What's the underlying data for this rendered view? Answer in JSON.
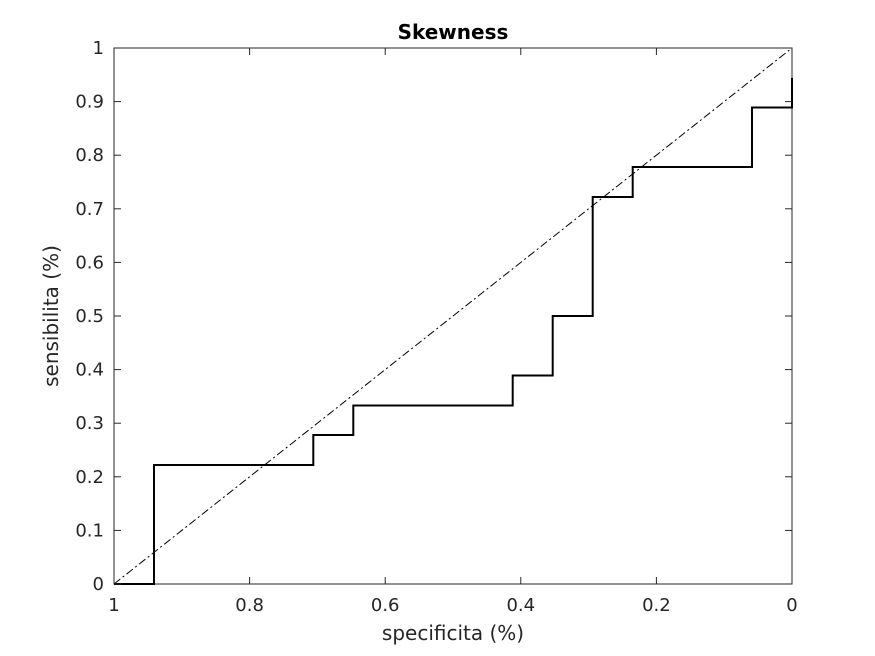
{
  "chart_data": {
    "type": "line",
    "title": "Skewness",
    "xlabel": "specificita (%)",
    "ylabel": "sensibilita (%)",
    "xlim": [
      1,
      0
    ],
    "ylim": [
      0,
      1
    ],
    "x_reversed": true,
    "grid": false,
    "box": true,
    "xticks": [
      1,
      0.8,
      0.6,
      0.4,
      0.2,
      0
    ],
    "xtick_labels": [
      "1",
      "0.8",
      "0.6",
      "0.4",
      "0.2",
      "0"
    ],
    "yticks": [
      0,
      0.1,
      0.2,
      0.3,
      0.4,
      0.5,
      0.6,
      0.7,
      0.8,
      0.9,
      1
    ],
    "ytick_labels": [
      "0",
      "0.1",
      "0.2",
      "0.3",
      "0.4",
      "0.5",
      "0.6",
      "0.7",
      "0.8",
      "0.9",
      "1"
    ],
    "series": [
      {
        "style": "solid",
        "color": "#000000",
        "x": [
          1,
          0.941,
          0.941,
          0.706,
          0.706,
          0.647,
          0.647,
          0.412,
          0.412,
          0.353,
          0.353,
          0.294,
          0.294,
          0.235,
          0.235,
          0.059,
          0.059,
          0.0,
          0.0
        ],
        "y": [
          0,
          0,
          0.222,
          0.222,
          0.278,
          0.278,
          0.333,
          0.333,
          0.389,
          0.389,
          0.5,
          0.5,
          0.722,
          0.722,
          0.778,
          0.778,
          0.889,
          0.889,
          0.944
        ]
      },
      {
        "style": "dash-dot",
        "color": "#000000",
        "x": [
          1,
          0
        ],
        "y": [
          0,
          1
        ]
      }
    ]
  }
}
